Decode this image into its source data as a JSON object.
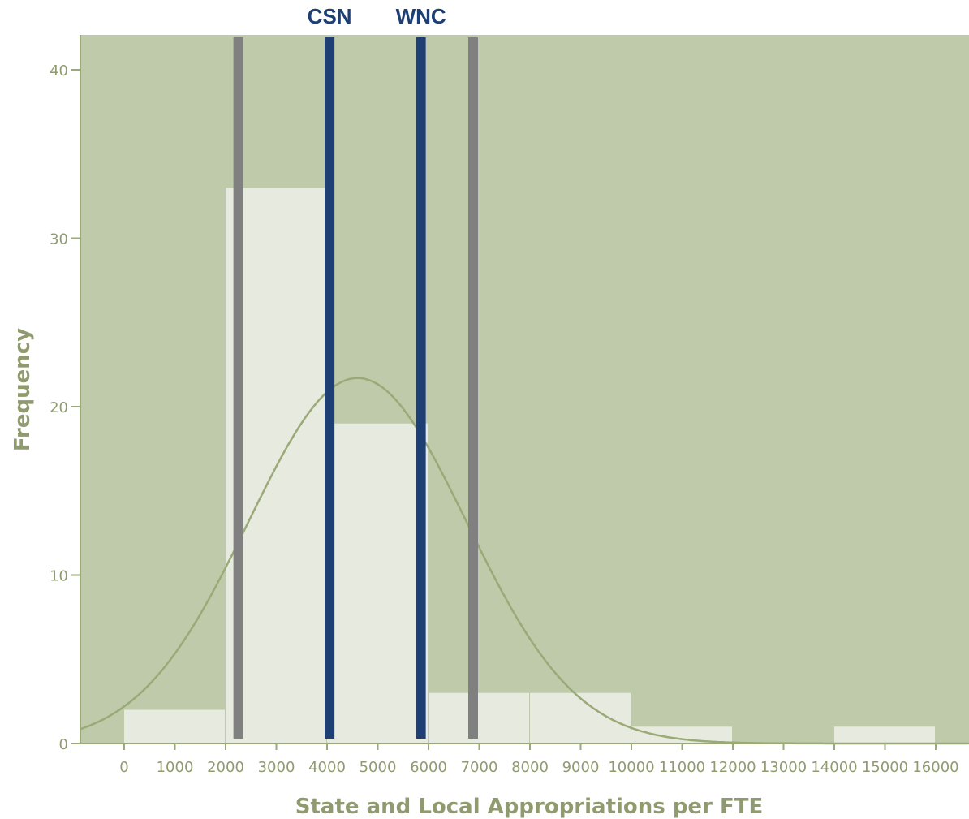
{
  "chart_data": {
    "type": "bar",
    "title": "",
    "xlabel": "State and Local Appropriations per FTE",
    "ylabel": "Frequency",
    "xlim": [
      -900,
      16650
    ],
    "ylim": [
      0,
      42
    ],
    "x_ticks": [
      0,
      1000,
      2000,
      3000,
      4000,
      5000,
      6000,
      7000,
      8000,
      9000,
      10000,
      11000,
      12000,
      13000,
      14000,
      15000,
      16000
    ],
    "y_ticks": [
      0,
      10,
      20,
      30,
      40
    ],
    "bins": [
      {
        "start": 0,
        "end": 2000,
        "count": 2
      },
      {
        "start": 2000,
        "end": 4000,
        "count": 33
      },
      {
        "start": 4000,
        "end": 6000,
        "count": 19
      },
      {
        "start": 6000,
        "end": 8000,
        "count": 3
      },
      {
        "start": 8000,
        "end": 10000,
        "count": 3
      },
      {
        "start": 10000,
        "end": 12000,
        "count": 1
      },
      {
        "start": 12000,
        "end": 14000,
        "count": 0
      },
      {
        "start": 14000,
        "end": 16000,
        "count": 1
      }
    ],
    "normal_curve": {
      "mean": 4600,
      "peak": 21.7,
      "sd": 2150
    },
    "reference_lines": [
      {
        "x": 2250,
        "label": "",
        "color": "#808080"
      },
      {
        "x": 4050,
        "label": "CSN",
        "color": "#1e3f73"
      },
      {
        "x": 5850,
        "label": "WNC",
        "color": "#1e3f73"
      },
      {
        "x": 6880,
        "label": "",
        "color": "#808080"
      }
    ],
    "grid": false,
    "legend": "none",
    "colors": {
      "plot_background": "#bfcaab",
      "bar_fill": "#e7eadf",
      "curve": "#9aaa77",
      "axis_text": "#8f9b6e"
    }
  }
}
